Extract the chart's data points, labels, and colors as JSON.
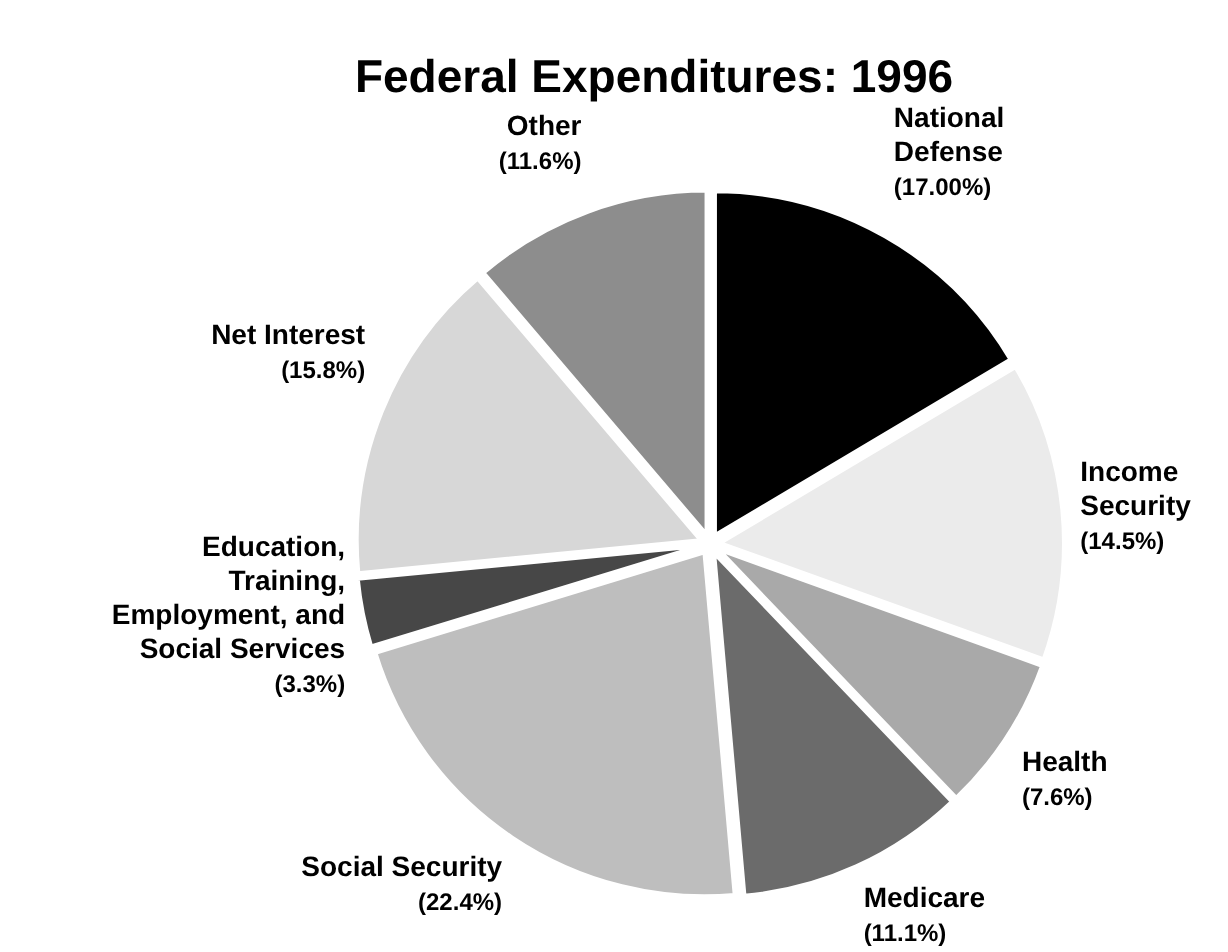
{
  "chart_data": {
    "type": "pie",
    "title": "Federal Expenditures: 1996",
    "categories": [
      "National Defense",
      "Income Security",
      "Health",
      "Medicare",
      "Social Security",
      "Education, Training, Employment, and Social Services",
      "Net Interest",
      "Other"
    ],
    "values": [
      17.0,
      14.5,
      7.6,
      11.1,
      22.4,
      3.3,
      15.8,
      11.6
    ],
    "value_labels": [
      "(17.00%)",
      "(14.5%)",
      "(7.6%)",
      "(11.1%)",
      "(22.4%)",
      "(3.3%)",
      "(15.8%)",
      "(11.6%)"
    ],
    "colors": [
      "#000000",
      "#ebebeb",
      "#a9a9a9",
      "#6b6b6b",
      "#bebebe",
      "#474747",
      "#d7d7d7",
      "#8d8d8d"
    ],
    "legend": false
  }
}
